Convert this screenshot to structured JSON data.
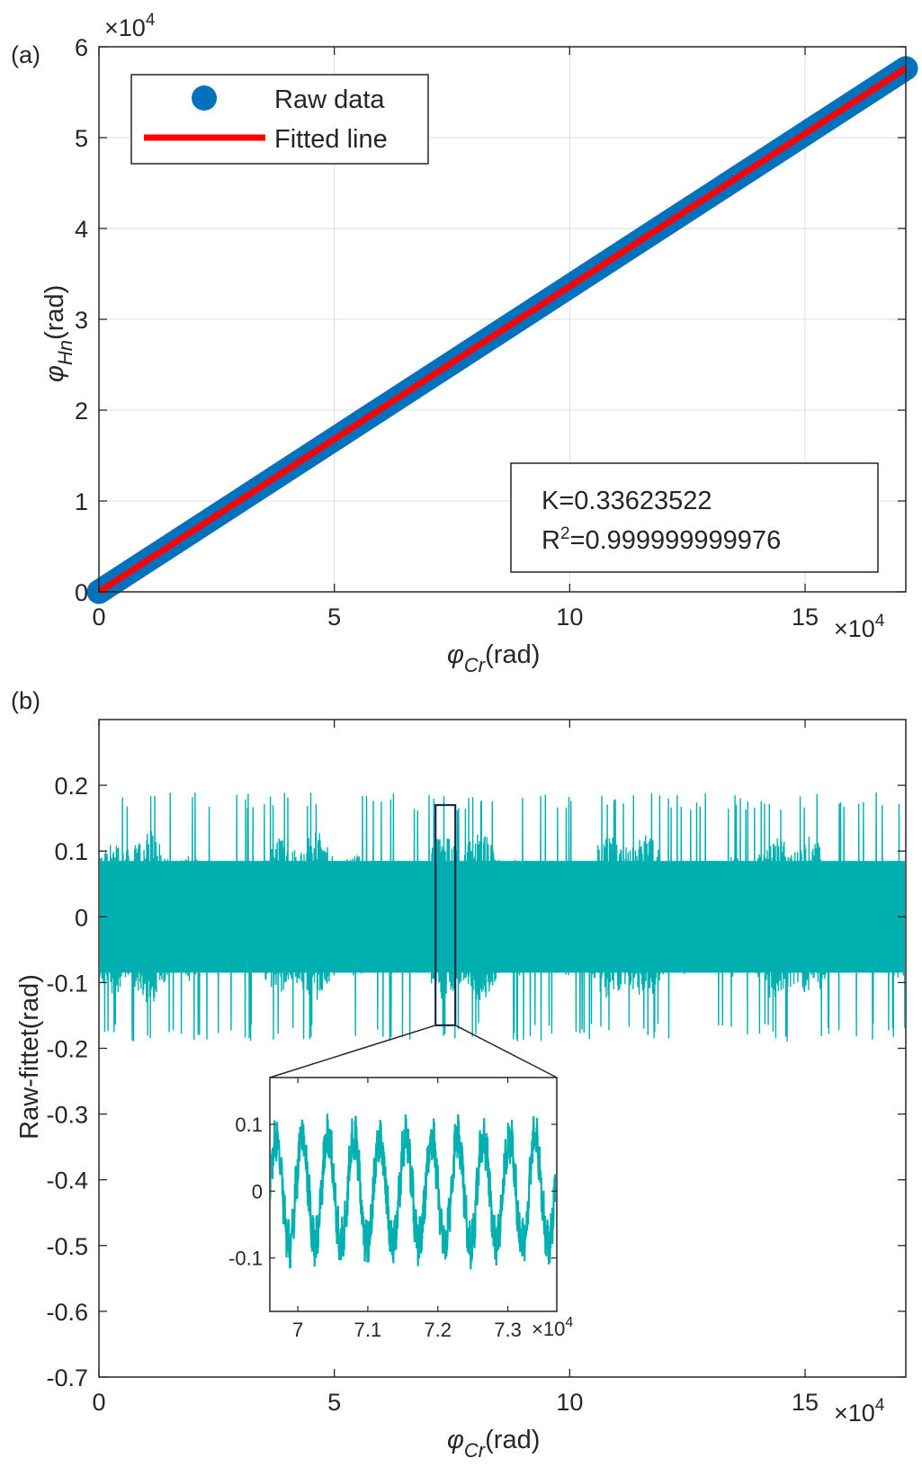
{
  "chart_data": [
    {
      "panel": "(a)",
      "type": "scatter",
      "xlabel": "φCr(rad)",
      "xlabel_symbol": "φ",
      "xlabel_sub": "Cr",
      "xlabel_unit": "(rad)",
      "ylabel_symbol": "φ",
      "ylabel_sub": "Hn",
      "ylabel_unit": "(rad)",
      "x_exponent": "×10^4",
      "y_exponent": "×10^4",
      "xlim": [
        0,
        171400
      ],
      "ylim": [
        0,
        60000
      ],
      "xticks": [
        0,
        50000,
        100000,
        150000
      ],
      "xtick_labels": [
        "0",
        "5",
        "10",
        "15"
      ],
      "yticks": [
        0,
        10000,
        20000,
        30000,
        40000,
        50000,
        60000
      ],
      "ytick_labels": [
        "0",
        "1",
        "2",
        "3",
        "4",
        "5",
        "6"
      ],
      "grid": true,
      "legend_position": "top-left",
      "series": [
        {
          "name": "Raw data",
          "kind": "markers",
          "color": "#0072BD",
          "x": [
            0,
            171400
          ],
          "y": [
            0,
            57630
          ]
        },
        {
          "name": "Fitted line",
          "kind": "line",
          "color": "#FF0000",
          "x": [
            0,
            171400
          ],
          "y": [
            0,
            57630
          ]
        }
      ],
      "annotation": {
        "k_text": "K=0.33623522",
        "r2_prefix": "R",
        "r2_sup": "2",
        "r2_value": "=0.999999999976"
      }
    },
    {
      "panel": "(b)",
      "type": "line",
      "xlabel_symbol": "φ",
      "xlabel_sub": "Cr",
      "xlabel_unit": "(rad)",
      "ylabel": "Raw-fittet(rad)",
      "x_exponent": "×10^4",
      "xlim": [
        0,
        171400
      ],
      "ylim": [
        -0.7,
        0.3
      ],
      "xticks": [
        0,
        50000,
        100000,
        150000
      ],
      "xtick_labels": [
        "0",
        "5",
        "10",
        "15"
      ],
      "yticks": [
        0.2,
        0.1,
        0,
        -0.1,
        -0.2,
        -0.3,
        -0.4,
        -0.5,
        -0.6,
        -0.7
      ],
      "ytick_labels": [
        "0.2",
        "0.1",
        "0",
        "-0.1",
        "-0.2",
        "-0.3",
        "-0.4",
        "-0.5",
        "-0.6",
        "-0.7"
      ],
      "grid": false,
      "series_color": "#00B0B0",
      "amplitude_typical": 0.12,
      "amplitude_peak": 0.19,
      "zoom_box": {
        "x": [
          71500,
          75700
        ],
        "y": [
          -0.165,
          0.17
        ]
      },
      "inset": {
        "xlim": [
          69600,
          73700
        ],
        "ylim": [
          -0.18,
          0.17
        ],
        "xticks": [
          70000,
          71000,
          72000,
          73000
        ],
        "xtick_labels": [
          "7",
          "7.1",
          "7.2",
          "7.3"
        ],
        "x_exponent": "×10^4",
        "yticks": [
          0.1,
          0,
          -0.1
        ],
        "ytick_labels": [
          "0.1",
          "0",
          "-0.1"
        ],
        "oscillation_period": 370,
        "oscillation_amplitude": 0.08,
        "noise_amplitude": 0.03
      }
    }
  ]
}
